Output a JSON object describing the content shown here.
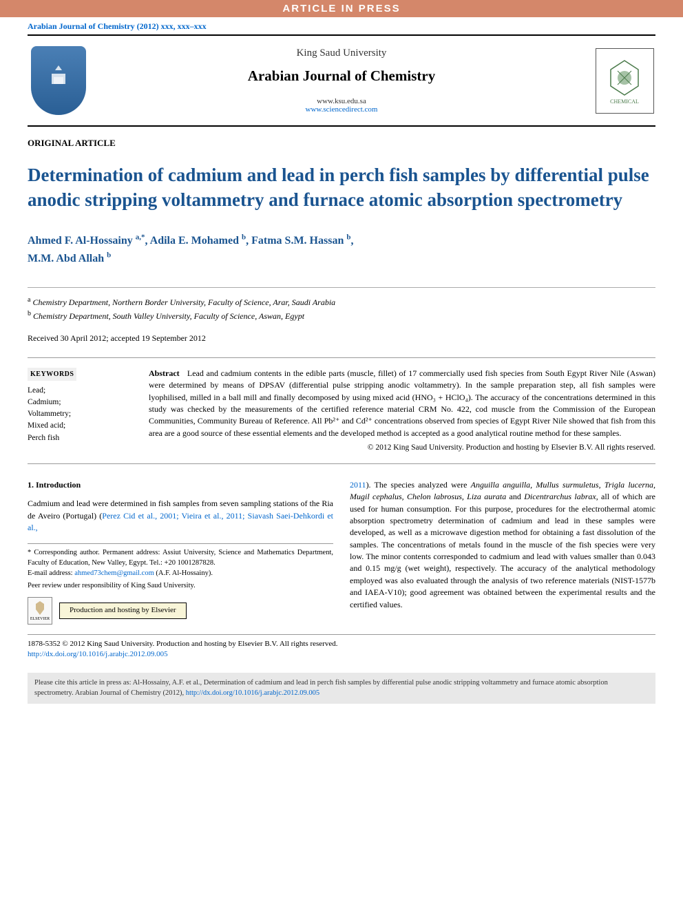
{
  "banner": "ARTICLE IN PRESS",
  "journal_ref": "Arabian Journal of Chemistry (2012) xxx, xxx–xxx",
  "header": {
    "publisher": "King Saud University",
    "journal": "Arabian Journal of Chemistry",
    "url1": "www.ksu.edu.sa",
    "url2": "www.sciencedirect.com"
  },
  "article_type": "ORIGINAL ARTICLE",
  "title": "Determination of cadmium and lead in perch fish samples by differential pulse anodic stripping voltammetry and furnace atomic absorption spectrometry",
  "authors": [
    {
      "name": "Ahmed F. Al-Hossainy",
      "sup": "a,*"
    },
    {
      "name": "Adila E. Mohamed",
      "sup": "b"
    },
    {
      "name": "Fatma S.M. Hassan",
      "sup": "b"
    },
    {
      "name": "M.M. Abd Allah",
      "sup": "b"
    }
  ],
  "affiliations": [
    {
      "sup": "a",
      "text": "Chemistry Department, Northern Border University, Faculty of Science, Arar, Saudi Arabia"
    },
    {
      "sup": "b",
      "text": "Chemistry Department, South Valley University, Faculty of Science, Aswan, Egypt"
    }
  ],
  "dates": "Received 30 April 2012; accepted 19 September 2012",
  "keywords_head": "KEYWORDS",
  "keywords": [
    "Lead;",
    "Cadmium;",
    "Voltammetry;",
    "Mixed acid;",
    "Perch fish"
  ],
  "abstract_label": "Abstract",
  "abstract": "Lead and cadmium contents in the edible parts (muscle, fillet) of 17 commercially used fish species from South Egypt River Nile (Aswan) were determined by means of DPSAV (differential pulse stripping anodic voltammetry). In the sample preparation step, all fish samples were lyophilised, milled in a ball mill and finally decomposed by using mixed acid (HNO₃ + HClO₄). The accuracy of the concentrations determined in this study was checked by the measurements of the certified reference material CRM No. 422, cod muscle from the Commission of the European Communities, Community Bureau of Reference. All Pb²⁺ and Cd²⁺ concentrations observed from species of Egypt River Nile showed that fish from this area are a good source of these essential elements and the developed method is accepted as a good analytical routine method for these samples.",
  "abstract_copyright": "© 2012 King Saud University. Production and hosting by Elsevier B.V. All rights reserved.",
  "intro_head": "1. Introduction",
  "intro_col1": "Cadmium and lead were determined in fish samples from seven sampling stations of the Ria de Aveiro (Portugal) (",
  "intro_cite1": "Perez Cid et al., 2001; Vieira et al., 2011; Siavash Saei-Dehkordi et al.,",
  "intro_col2a": "2011",
  "intro_col2b": "). The species analyzed were ",
  "intro_species": "Anguilla anguilla, Mullus surmuletus, Trigla lucerna, Mugil cephalus, Chelon labrosus, Liza aurata",
  "intro_and": " and ",
  "intro_species2": "Dicentrarchus labrax",
  "intro_col2c": ", all of which are used for human consumption. For this purpose, procedures for the electrothermal atomic absorption spectrometry determination of cadmium and lead in these samples were developed, as well as a microwave digestion method for obtaining a fast dissolution of the samples. The concentrations of metals found in the muscle of the fish species were very low. The minor contents corresponded to cadmium and lead with values smaller than 0.043 and 0.15 mg/g (wet weight), respectively. The accuracy of the analytical methodology employed was also evaluated through the analysis of two reference materials (NIST-1577b and IAEA-V10); good agreement was obtained between the experimental results and the certified values.",
  "footnote": {
    "corr_label": "* Corresponding author. Permanent address: Assiut University, Science and Mathematics Department, Faculty of Education, New Valley, Egypt. Tel.: +20 1001287828.",
    "email_label": "E-mail address: ",
    "email": "ahmed73chem@gmail.com",
    "email_tail": " (A.F. Al-Hossainy).",
    "peer": "Peer review under responsibility of King Saud University.",
    "elsevier_box": "Production and hosting by Elsevier",
    "elsevier_name": "ELSEVIER"
  },
  "footer": {
    "line1": "1878-5352 © 2012 King Saud University. Production and hosting by Elsevier B.V. All rights reserved.",
    "doi": "http://dx.doi.org/10.1016/j.arabjc.2012.09.005"
  },
  "citation": {
    "text": "Please cite this article in press as: Al-Hossainy, A.F. et al., Determination of cadmium and lead in perch fish samples by differential pulse anodic stripping voltammetry and furnace atomic absorption spectrometry. Arabian Journal of Chemistry (2012), ",
    "link": "http://dx.doi.org/10.1016/j.arabjc.2012.09.005"
  },
  "colors": {
    "banner_bg": "#d4876a",
    "link": "#0066cc",
    "title": "#1a5490",
    "cite_bg": "#e8e8e8"
  }
}
